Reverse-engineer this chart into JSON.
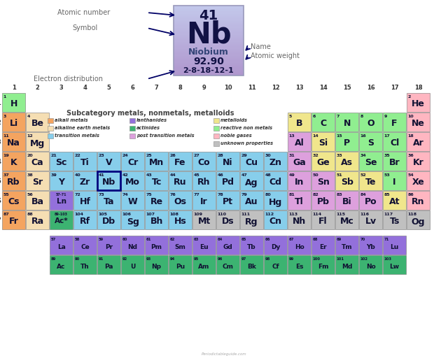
{
  "title": "Subcategory metals, nonmetals, metalloids",
  "bg_color": "#ffffff",
  "colors": {
    "alkali": "#F4A460",
    "alkaline": "#F5DEB3",
    "transition": "#87CEEB",
    "post_transition": "#DDA0DD",
    "metalloid": "#F0E68C",
    "reactive_nonmetal": "#90EE90",
    "noble_gas": "#FFB6C1",
    "lanthanide": "#9370DB",
    "actinide": "#3CB371",
    "unknown": "#C0C0C0",
    "highlight_border": "#000080"
  },
  "elements": [
    {
      "symbol": "H",
      "number": 1,
      "row": 1,
      "col": 1,
      "type": "reactive_nonmetal"
    },
    {
      "symbol": "He",
      "number": 2,
      "row": 1,
      "col": 18,
      "type": "noble_gas"
    },
    {
      "symbol": "Li",
      "number": 3,
      "row": 2,
      "col": 1,
      "type": "alkali"
    },
    {
      "symbol": "Be",
      "number": 4,
      "row": 2,
      "col": 2,
      "type": "alkaline"
    },
    {
      "symbol": "B",
      "number": 5,
      "row": 2,
      "col": 13,
      "type": "metalloid"
    },
    {
      "symbol": "C",
      "number": 6,
      "row": 2,
      "col": 14,
      "type": "reactive_nonmetal"
    },
    {
      "symbol": "N",
      "number": 7,
      "row": 2,
      "col": 15,
      "type": "reactive_nonmetal"
    },
    {
      "symbol": "O",
      "number": 8,
      "row": 2,
      "col": 16,
      "type": "reactive_nonmetal"
    },
    {
      "symbol": "F",
      "number": 9,
      "row": 2,
      "col": 17,
      "type": "reactive_nonmetal"
    },
    {
      "symbol": "Ne",
      "number": 10,
      "row": 2,
      "col": 18,
      "type": "noble_gas"
    },
    {
      "symbol": "Na",
      "number": 11,
      "row": 3,
      "col": 1,
      "type": "alkali"
    },
    {
      "symbol": "Mg",
      "number": 12,
      "row": 3,
      "col": 2,
      "type": "alkaline"
    },
    {
      "symbol": "Al",
      "number": 13,
      "row": 3,
      "col": 13,
      "type": "post_transition"
    },
    {
      "symbol": "Si",
      "number": 14,
      "row": 3,
      "col": 14,
      "type": "metalloid"
    },
    {
      "symbol": "P",
      "number": 15,
      "row": 3,
      "col": 15,
      "type": "reactive_nonmetal"
    },
    {
      "symbol": "S",
      "number": 16,
      "row": 3,
      "col": 16,
      "type": "reactive_nonmetal"
    },
    {
      "symbol": "Cl",
      "number": 17,
      "row": 3,
      "col": 17,
      "type": "reactive_nonmetal"
    },
    {
      "symbol": "Ar",
      "number": 18,
      "row": 3,
      "col": 18,
      "type": "noble_gas"
    },
    {
      "symbol": "K",
      "number": 19,
      "row": 4,
      "col": 1,
      "type": "alkali"
    },
    {
      "symbol": "Ca",
      "number": 20,
      "row": 4,
      "col": 2,
      "type": "alkaline"
    },
    {
      "symbol": "Sc",
      "number": 21,
      "row": 4,
      "col": 3,
      "type": "transition"
    },
    {
      "symbol": "Ti",
      "number": 22,
      "row": 4,
      "col": 4,
      "type": "transition"
    },
    {
      "symbol": "V",
      "number": 23,
      "row": 4,
      "col": 5,
      "type": "transition"
    },
    {
      "symbol": "Cr",
      "number": 24,
      "row": 4,
      "col": 6,
      "type": "transition"
    },
    {
      "symbol": "Mn",
      "number": 25,
      "row": 4,
      "col": 7,
      "type": "transition"
    },
    {
      "symbol": "Fe",
      "number": 26,
      "row": 4,
      "col": 8,
      "type": "transition"
    },
    {
      "symbol": "Co",
      "number": 27,
      "row": 4,
      "col": 9,
      "type": "transition"
    },
    {
      "symbol": "Ni",
      "number": 28,
      "row": 4,
      "col": 10,
      "type": "transition"
    },
    {
      "symbol": "Cu",
      "number": 29,
      "row": 4,
      "col": 11,
      "type": "transition"
    },
    {
      "symbol": "Zn",
      "number": 30,
      "row": 4,
      "col": 12,
      "type": "transition"
    },
    {
      "symbol": "Ga",
      "number": 31,
      "row": 4,
      "col": 13,
      "type": "post_transition"
    },
    {
      "symbol": "Ge",
      "number": 32,
      "row": 4,
      "col": 14,
      "type": "metalloid"
    },
    {
      "symbol": "As",
      "number": 33,
      "row": 4,
      "col": 15,
      "type": "metalloid"
    },
    {
      "symbol": "Se",
      "number": 34,
      "row": 4,
      "col": 16,
      "type": "reactive_nonmetal"
    },
    {
      "symbol": "Br",
      "number": 35,
      "row": 4,
      "col": 17,
      "type": "reactive_nonmetal"
    },
    {
      "symbol": "Kr",
      "number": 36,
      "row": 4,
      "col": 18,
      "type": "noble_gas"
    },
    {
      "symbol": "Rb",
      "number": 37,
      "row": 5,
      "col": 1,
      "type": "alkali"
    },
    {
      "symbol": "Sr",
      "number": 38,
      "row": 5,
      "col": 2,
      "type": "alkaline"
    },
    {
      "symbol": "Y",
      "number": 39,
      "row": 5,
      "col": 3,
      "type": "transition"
    },
    {
      "symbol": "Zr",
      "number": 40,
      "row": 5,
      "col": 4,
      "type": "transition"
    },
    {
      "symbol": "Nb",
      "number": 41,
      "row": 5,
      "col": 5,
      "type": "transition",
      "highlight": true
    },
    {
      "symbol": "Mo",
      "number": 42,
      "row": 5,
      "col": 6,
      "type": "transition"
    },
    {
      "symbol": "Tc",
      "number": 43,
      "row": 5,
      "col": 7,
      "type": "transition"
    },
    {
      "symbol": "Ru",
      "number": 44,
      "row": 5,
      "col": 8,
      "type": "transition"
    },
    {
      "symbol": "Rh",
      "number": 45,
      "row": 5,
      "col": 9,
      "type": "transition"
    },
    {
      "symbol": "Pd",
      "number": 46,
      "row": 5,
      "col": 10,
      "type": "transition"
    },
    {
      "symbol": "Ag",
      "number": 47,
      "row": 5,
      "col": 11,
      "type": "transition"
    },
    {
      "symbol": "Cd",
      "number": 48,
      "row": 5,
      "col": 12,
      "type": "transition"
    },
    {
      "symbol": "In",
      "number": 49,
      "row": 5,
      "col": 13,
      "type": "post_transition"
    },
    {
      "symbol": "Sn",
      "number": 50,
      "row": 5,
      "col": 14,
      "type": "post_transition"
    },
    {
      "symbol": "Sb",
      "number": 51,
      "row": 5,
      "col": 15,
      "type": "metalloid"
    },
    {
      "symbol": "Te",
      "number": 52,
      "row": 5,
      "col": 16,
      "type": "metalloid"
    },
    {
      "symbol": "I",
      "number": 53,
      "row": 5,
      "col": 17,
      "type": "reactive_nonmetal"
    },
    {
      "symbol": "Xe",
      "number": 54,
      "row": 5,
      "col": 18,
      "type": "noble_gas"
    },
    {
      "symbol": "Cs",
      "number": 55,
      "row": 6,
      "col": 1,
      "type": "alkali"
    },
    {
      "symbol": "Ba",
      "number": 56,
      "row": 6,
      "col": 2,
      "type": "alkaline"
    },
    {
      "symbol": "Ln",
      "number": null,
      "row": 6,
      "col": 3,
      "type": "lanthanide_placeholder",
      "top_label": "57-71"
    },
    {
      "symbol": "Hf",
      "number": 72,
      "row": 6,
      "col": 4,
      "type": "transition"
    },
    {
      "symbol": "Ta",
      "number": 73,
      "row": 6,
      "col": 5,
      "type": "transition"
    },
    {
      "symbol": "W",
      "number": 74,
      "row": 6,
      "col": 6,
      "type": "transition"
    },
    {
      "symbol": "Re",
      "number": 75,
      "row": 6,
      "col": 7,
      "type": "transition"
    },
    {
      "symbol": "Os",
      "number": 76,
      "row": 6,
      "col": 8,
      "type": "transition"
    },
    {
      "symbol": "Ir",
      "number": 77,
      "row": 6,
      "col": 9,
      "type": "transition"
    },
    {
      "symbol": "Pt",
      "number": 78,
      "row": 6,
      "col": 10,
      "type": "transition"
    },
    {
      "symbol": "Au",
      "number": 79,
      "row": 6,
      "col": 11,
      "type": "transition"
    },
    {
      "symbol": "Hg",
      "number": 80,
      "row": 6,
      "col": 12,
      "type": "transition"
    },
    {
      "symbol": "Tl",
      "number": 81,
      "row": 6,
      "col": 13,
      "type": "post_transition"
    },
    {
      "symbol": "Pb",
      "number": 82,
      "row": 6,
      "col": 14,
      "type": "post_transition"
    },
    {
      "symbol": "Bi",
      "number": 83,
      "row": 6,
      "col": 15,
      "type": "post_transition"
    },
    {
      "symbol": "Po",
      "number": 84,
      "row": 6,
      "col": 16,
      "type": "post_transition"
    },
    {
      "symbol": "At",
      "number": 85,
      "row": 6,
      "col": 17,
      "type": "metalloid"
    },
    {
      "symbol": "Rn",
      "number": 86,
      "row": 6,
      "col": 18,
      "type": "noble_gas"
    },
    {
      "symbol": "Fr",
      "number": 87,
      "row": 7,
      "col": 1,
      "type": "alkali"
    },
    {
      "symbol": "Ra",
      "number": 88,
      "row": 7,
      "col": 2,
      "type": "alkaline"
    },
    {
      "symbol": "Ac*",
      "number": null,
      "row": 7,
      "col": 3,
      "type": "actinide_placeholder",
      "top_label": "89-103"
    },
    {
      "symbol": "Rf",
      "number": 104,
      "row": 7,
      "col": 4,
      "type": "transition"
    },
    {
      "symbol": "Db",
      "number": 105,
      "row": 7,
      "col": 5,
      "type": "transition"
    },
    {
      "symbol": "Sg",
      "number": 106,
      "row": 7,
      "col": 6,
      "type": "transition"
    },
    {
      "symbol": "Bh",
      "number": 107,
      "row": 7,
      "col": 7,
      "type": "transition"
    },
    {
      "symbol": "Hs",
      "number": 108,
      "row": 7,
      "col": 8,
      "type": "transition"
    },
    {
      "symbol": "Mt",
      "number": 109,
      "row": 7,
      "col": 9,
      "type": "unknown"
    },
    {
      "symbol": "Ds",
      "number": 110,
      "row": 7,
      "col": 10,
      "type": "unknown"
    },
    {
      "symbol": "Rg",
      "number": 111,
      "row": 7,
      "col": 11,
      "type": "unknown"
    },
    {
      "symbol": "Cn",
      "number": 112,
      "row": 7,
      "col": 12,
      "type": "transition"
    },
    {
      "symbol": "Nh",
      "number": 113,
      "row": 7,
      "col": 13,
      "type": "unknown"
    },
    {
      "symbol": "Fl",
      "number": 114,
      "row": 7,
      "col": 14,
      "type": "unknown"
    },
    {
      "symbol": "Mc",
      "number": 115,
      "row": 7,
      "col": 15,
      "type": "unknown"
    },
    {
      "symbol": "Lv",
      "number": 116,
      "row": 7,
      "col": 16,
      "type": "unknown"
    },
    {
      "symbol": "Ts",
      "number": 117,
      "row": 7,
      "col": 17,
      "type": "unknown"
    },
    {
      "symbol": "Og",
      "number": 118,
      "row": 7,
      "col": 18,
      "type": "unknown"
    },
    {
      "symbol": "La",
      "number": 57,
      "row": 9,
      "col": 3,
      "type": "lanthanide"
    },
    {
      "symbol": "Ce",
      "number": 58,
      "row": 9,
      "col": 4,
      "type": "lanthanide"
    },
    {
      "symbol": "Pr",
      "number": 59,
      "row": 9,
      "col": 5,
      "type": "lanthanide"
    },
    {
      "symbol": "Nd",
      "number": 60,
      "row": 9,
      "col": 6,
      "type": "lanthanide"
    },
    {
      "symbol": "Pm",
      "number": 61,
      "row": 9,
      "col": 7,
      "type": "lanthanide"
    },
    {
      "symbol": "Sm",
      "number": 62,
      "row": 9,
      "col": 8,
      "type": "lanthanide"
    },
    {
      "symbol": "Eu",
      "number": 63,
      "row": 9,
      "col": 9,
      "type": "lanthanide"
    },
    {
      "symbol": "Gd",
      "number": 64,
      "row": 9,
      "col": 10,
      "type": "lanthanide"
    },
    {
      "symbol": "Tb",
      "number": 65,
      "row": 9,
      "col": 11,
      "type": "lanthanide"
    },
    {
      "symbol": "Dy",
      "number": 66,
      "row": 9,
      "col": 12,
      "type": "lanthanide"
    },
    {
      "symbol": "Ho",
      "number": 67,
      "row": 9,
      "col": 13,
      "type": "lanthanide"
    },
    {
      "symbol": "Er",
      "number": 68,
      "row": 9,
      "col": 14,
      "type": "lanthanide"
    },
    {
      "symbol": "Tm",
      "number": 69,
      "row": 9,
      "col": 15,
      "type": "lanthanide"
    },
    {
      "symbol": "Yb",
      "number": 70,
      "row": 9,
      "col": 16,
      "type": "lanthanide"
    },
    {
      "symbol": "Lu",
      "number": 71,
      "row": 9,
      "col": 17,
      "type": "lanthanide"
    },
    {
      "symbol": "Ac",
      "number": 89,
      "row": 10,
      "col": 3,
      "type": "actinide"
    },
    {
      "symbol": "Th",
      "number": 90,
      "row": 10,
      "col": 4,
      "type": "actinide"
    },
    {
      "symbol": "Pa",
      "number": 91,
      "row": 10,
      "col": 5,
      "type": "actinide"
    },
    {
      "symbol": "U",
      "number": 92,
      "row": 10,
      "col": 6,
      "type": "actinide"
    },
    {
      "symbol": "Np",
      "number": 93,
      "row": 10,
      "col": 7,
      "type": "actinide"
    },
    {
      "symbol": "Pu",
      "number": 94,
      "row": 10,
      "col": 8,
      "type": "actinide"
    },
    {
      "symbol": "Am",
      "number": 95,
      "row": 10,
      "col": 9,
      "type": "actinide"
    },
    {
      "symbol": "Cm",
      "number": 96,
      "row": 10,
      "col": 10,
      "type": "actinide"
    },
    {
      "symbol": "Bk",
      "number": 97,
      "row": 10,
      "col": 11,
      "type": "actinide"
    },
    {
      "symbol": "Cf",
      "number": 98,
      "row": 10,
      "col": 12,
      "type": "actinide"
    },
    {
      "symbol": "Es",
      "number": 99,
      "row": 10,
      "col": 13,
      "type": "actinide"
    },
    {
      "symbol": "Fm",
      "number": 100,
      "row": 10,
      "col": 14,
      "type": "actinide"
    },
    {
      "symbol": "Md",
      "number": 101,
      "row": 10,
      "col": 15,
      "type": "actinide"
    },
    {
      "symbol": "No",
      "number": 102,
      "row": 10,
      "col": 16,
      "type": "actinide"
    },
    {
      "symbol": "Lw",
      "number": 103,
      "row": 10,
      "col": 17,
      "type": "actinide"
    }
  ],
  "nb_element": {
    "atomic_number": "41",
    "symbol": "Nb",
    "name": "Niobium",
    "weight": "92.90",
    "electron_dist": "2-8-18-12-1"
  },
  "legend": [
    [
      [
        "alkali metals",
        "alkali"
      ],
      [
        "lanthanides",
        "lanthanide"
      ],
      [
        "metalloids",
        "metalloid"
      ]
    ],
    [
      [
        "alkaline earth metals",
        "alkaline"
      ],
      [
        "actinides",
        "actinide"
      ],
      [
        "reactive non metals",
        "reactive_nonmetal"
      ]
    ],
    [
      [
        "transition metals",
        "transition"
      ],
      [
        "post transition metals",
        "post_transition"
      ],
      [
        "noble gases",
        "noble_gas"
      ]
    ],
    [
      [
        "",
        ""
      ],
      [
        "",
        ""
      ],
      [
        "unknown properties",
        "unknown"
      ]
    ]
  ]
}
